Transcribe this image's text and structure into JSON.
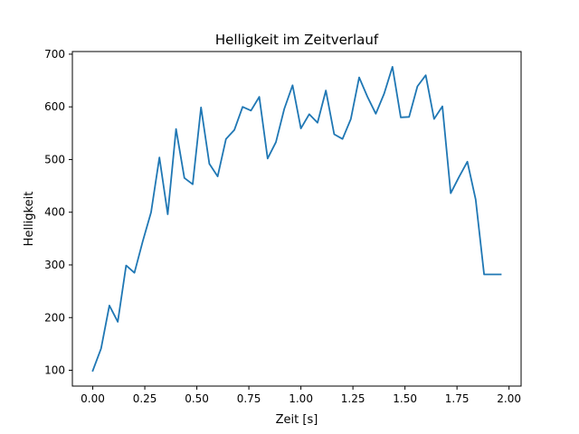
{
  "chart_data": {
    "type": "line",
    "title": "Helligkeit im Zeitverlauf",
    "xlabel": "Zeit [s]",
    "ylabel": "Helligkeit",
    "xlim": [
      -0.098,
      2.058
    ],
    "ylim": [
      70,
      705
    ],
    "xticks": [
      0.0,
      0.25,
      0.5,
      0.75,
      1.0,
      1.25,
      1.5,
      1.75,
      2.0
    ],
    "xtick_labels": [
      "0.00",
      "0.25",
      "0.50",
      "0.75",
      "1.00",
      "1.25",
      "1.50",
      "1.75",
      "2.00"
    ],
    "yticks": [
      100,
      200,
      300,
      400,
      500,
      600,
      700
    ],
    "ytick_labels": [
      "100",
      "200",
      "300",
      "400",
      "500",
      "600",
      "700"
    ],
    "grid": false,
    "color": "#1f77b4",
    "series": [
      {
        "x": [
          0.0,
          0.04,
          0.08,
          0.12,
          0.16,
          0.2,
          0.24,
          0.28,
          0.32,
          0.36,
          0.4,
          0.44,
          0.48,
          0.52,
          0.56,
          0.6,
          0.64,
          0.68,
          0.72,
          0.76,
          0.8,
          0.84,
          0.88,
          0.92,
          0.96,
          1.0,
          1.04,
          1.08,
          1.12,
          1.16,
          1.2,
          1.24,
          1.28,
          1.32,
          1.36,
          1.4,
          1.44,
          1.48,
          1.52,
          1.56,
          1.6,
          1.64,
          1.68,
          1.72,
          1.76,
          1.8,
          1.84,
          1.88,
          1.92,
          1.96
        ],
        "y": [
          99,
          141,
          223,
          192,
          299,
          285,
          345,
          400,
          504,
          396,
          558,
          465,
          453,
          599,
          492,
          468,
          539,
          556,
          600,
          593,
          619,
          502,
          533,
          596,
          641,
          559,
          586,
          570,
          631,
          548,
          539,
          577,
          656,
          619,
          587,
          625,
          676,
          580,
          581,
          639,
          660,
          577,
          601,
          436,
          467,
          496,
          424,
          282,
          282,
          282
        ]
      }
    ]
  }
}
